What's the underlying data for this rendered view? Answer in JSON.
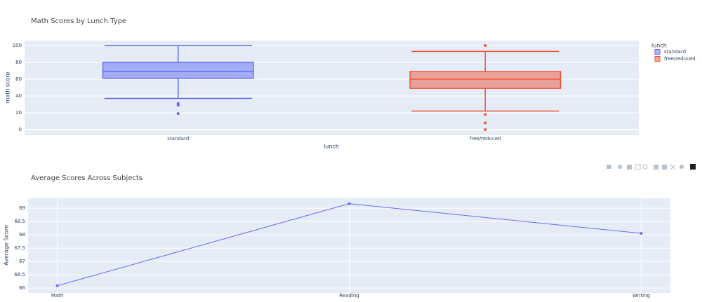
{
  "chart_data": [
    {
      "type": "box",
      "title": "Math Scores by Lunch Type",
      "xlabel": "lunch",
      "ylabel": "math score",
      "categories": [
        "standard",
        "free/reduced"
      ],
      "legend_title": "lunch",
      "legend": "top-right",
      "grid": true,
      "ylim": [
        -6.7,
        105.8
      ],
      "yticks": [
        0,
        20,
        40,
        60,
        80,
        100
      ],
      "series": [
        {
          "name": "standard",
          "color": "#636efa",
          "low": 37,
          "q1": 61,
          "median": 69,
          "q3": 80,
          "high": 100,
          "outliers": [
            19,
            29,
            31
          ]
        },
        {
          "name": "free/reduced",
          "color": "#ef553b",
          "low": 22,
          "q1": 49,
          "median": 60,
          "q3": 69,
          "high": 93,
          "outliers": [
            100,
            18,
            8,
            0
          ]
        }
      ]
    },
    {
      "type": "line",
      "title": "Average Scores Across Subjects",
      "ylabel": "Average Score",
      "grid": true,
      "categories": [
        "Math",
        "Reading",
        "Writing"
      ],
      "ylim": [
        65.82,
        69.37
      ],
      "yticks": [
        66,
        66.5,
        67,
        67.5,
        68,
        68.5,
        69
      ],
      "series": [
        {
          "color": "#636efa",
          "values": [
            66.089,
            69.169,
            68.054
          ]
        }
      ]
    }
  ]
}
